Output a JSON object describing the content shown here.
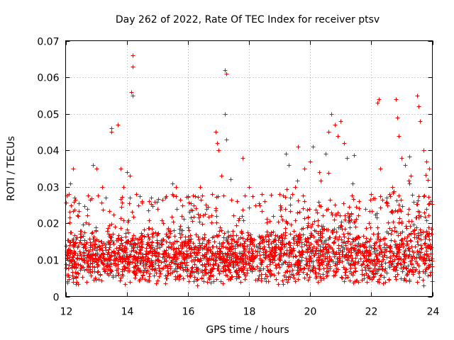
{
  "chart_data": {
    "type": "scatter",
    "title": "Day 262 of 2022, Rate Of TEC Index for receiver ptsv",
    "xlabel": "GPS time / hours",
    "ylabel": "ROTI / TECUs",
    "xlim": [
      12,
      24
    ],
    "ylim": [
      0,
      0.07
    ],
    "x_ticks": [
      12,
      14,
      16,
      18,
      20,
      22,
      24
    ],
    "y_ticks": [
      0,
      0.01,
      0.02,
      0.03,
      0.04,
      0.05,
      0.06,
      0.07
    ],
    "x_tick_labels": [
      "12",
      "14",
      "16",
      "18",
      "20",
      "22",
      "24"
    ],
    "y_tick_labels": [
      "0",
      "0.01",
      "0.02",
      "0.03",
      "0.04",
      "0.05",
      "0.06",
      "0.07"
    ],
    "grid": true,
    "marker": "+",
    "color": "#ff0000",
    "series": [
      {
        "name": "ROTI",
        "points": [
          [
            12.1,
            0.028
          ],
          [
            12.15,
            0.031
          ],
          [
            12.25,
            0.035
          ],
          [
            12.3,
            0.027
          ],
          [
            12.4,
            0.022
          ],
          [
            12.5,
            0.018
          ],
          [
            12.7,
            0.024
          ],
          [
            12.9,
            0.036
          ],
          [
            13.0,
            0.035
          ],
          [
            13.2,
            0.03
          ],
          [
            13.3,
            0.027
          ],
          [
            13.5,
            0.045
          ],
          [
            13.5,
            0.046
          ],
          [
            13.7,
            0.047
          ],
          [
            13.8,
            0.035
          ],
          [
            13.9,
            0.03
          ],
          [
            14.0,
            0.034
          ],
          [
            14.1,
            0.033
          ],
          [
            14.2,
            0.066
          ],
          [
            14.2,
            0.063
          ],
          [
            14.15,
            0.056
          ],
          [
            14.2,
            0.055
          ],
          [
            14.3,
            0.028
          ],
          [
            14.5,
            0.026
          ],
          [
            14.8,
            0.027
          ],
          [
            15.0,
            0.024
          ],
          [
            15.2,
            0.02
          ],
          [
            15.5,
            0.031
          ],
          [
            15.6,
            0.03
          ],
          [
            15.8,
            0.022
          ],
          [
            16.0,
            0.019
          ],
          [
            16.2,
            0.025
          ],
          [
            16.4,
            0.03
          ],
          [
            16.6,
            0.024
          ],
          [
            16.8,
            0.028
          ],
          [
            16.9,
            0.045
          ],
          [
            16.95,
            0.042
          ],
          [
            17.0,
            0.04
          ],
          [
            17.1,
            0.033
          ],
          [
            17.2,
            0.062
          ],
          [
            17.25,
            0.061
          ],
          [
            17.2,
            0.05
          ],
          [
            17.25,
            0.043
          ],
          [
            17.4,
            0.032
          ],
          [
            17.6,
            0.026
          ],
          [
            17.8,
            0.038
          ],
          [
            18.0,
            0.03
          ],
          [
            18.2,
            0.025
          ],
          [
            18.5,
            0.026
          ],
          [
            18.8,
            0.022
          ],
          [
            19.0,
            0.028
          ],
          [
            19.2,
            0.039
          ],
          [
            19.3,
            0.036
          ],
          [
            19.5,
            0.03
          ],
          [
            19.6,
            0.041
          ],
          [
            19.8,
            0.035
          ],
          [
            20.0,
            0.037
          ],
          [
            20.1,
            0.041
          ],
          [
            20.3,
            0.034
          ],
          [
            20.5,
            0.039
          ],
          [
            20.6,
            0.045
          ],
          [
            20.7,
            0.05
          ],
          [
            20.8,
            0.047
          ],
          [
            20.9,
            0.044
          ],
          [
            21.0,
            0.048
          ],
          [
            21.1,
            0.042
          ],
          [
            21.2,
            0.038
          ],
          [
            21.4,
            0.031
          ],
          [
            21.6,
            0.026
          ],
          [
            21.8,
            0.024
          ],
          [
            22.0,
            0.028
          ],
          [
            22.2,
            0.053
          ],
          [
            22.25,
            0.054
          ],
          [
            22.3,
            0.035
          ],
          [
            22.5,
            0.027
          ],
          [
            22.7,
            0.03
          ],
          [
            22.8,
            0.054
          ],
          [
            22.85,
            0.049
          ],
          [
            22.9,
            0.044
          ],
          [
            23.0,
            0.038
          ],
          [
            23.1,
            0.036
          ],
          [
            23.3,
            0.033
          ],
          [
            23.5,
            0.055
          ],
          [
            23.55,
            0.052
          ],
          [
            23.6,
            0.048
          ],
          [
            23.7,
            0.04
          ],
          [
            23.8,
            0.037
          ],
          [
            23.9,
            0.035
          ],
          [
            23.95,
            0.026
          ],
          [
            12.05,
            0.012
          ],
          [
            12.2,
            0.008
          ],
          [
            12.35,
            0.004
          ],
          [
            12.6,
            0.01
          ],
          [
            12.8,
            0.009
          ],
          [
            13.1,
            0.011
          ],
          [
            13.4,
            0.006
          ],
          [
            13.6,
            0.012
          ],
          [
            14.0,
            0.009
          ],
          [
            14.4,
            0.007
          ],
          [
            14.7,
            0.012
          ],
          [
            15.0,
            0.01
          ],
          [
            15.3,
            0.005
          ],
          [
            15.6,
            0.011
          ],
          [
            15.9,
            0.008
          ],
          [
            16.1,
            0.006
          ],
          [
            16.3,
            0.003
          ],
          [
            16.6,
            0.009
          ],
          [
            16.9,
            0.01
          ],
          [
            17.2,
            0.007
          ],
          [
            17.5,
            0.011
          ],
          [
            17.8,
            0.009
          ],
          [
            18.1,
            0.012
          ],
          [
            18.4,
            0.005
          ],
          [
            18.7,
            0.01
          ],
          [
            19.0,
            0.008
          ],
          [
            19.3,
            0.011
          ],
          [
            19.6,
            0.009
          ],
          [
            19.9,
            0.013
          ],
          [
            20.2,
            0.01
          ],
          [
            20.5,
            0.012
          ],
          [
            20.8,
            0.006
          ],
          [
            21.1,
            0.011
          ],
          [
            21.4,
            0.009
          ],
          [
            21.7,
            0.012
          ],
          [
            22.0,
            0.01
          ],
          [
            22.3,
            0.013
          ],
          [
            22.6,
            0.008
          ],
          [
            22.9,
            0.011
          ],
          [
            23.2,
            0.013
          ],
          [
            23.5,
            0.004
          ],
          [
            23.7,
            0.003
          ],
          [
            23.9,
            0.01
          ]
        ]
      }
    ]
  }
}
